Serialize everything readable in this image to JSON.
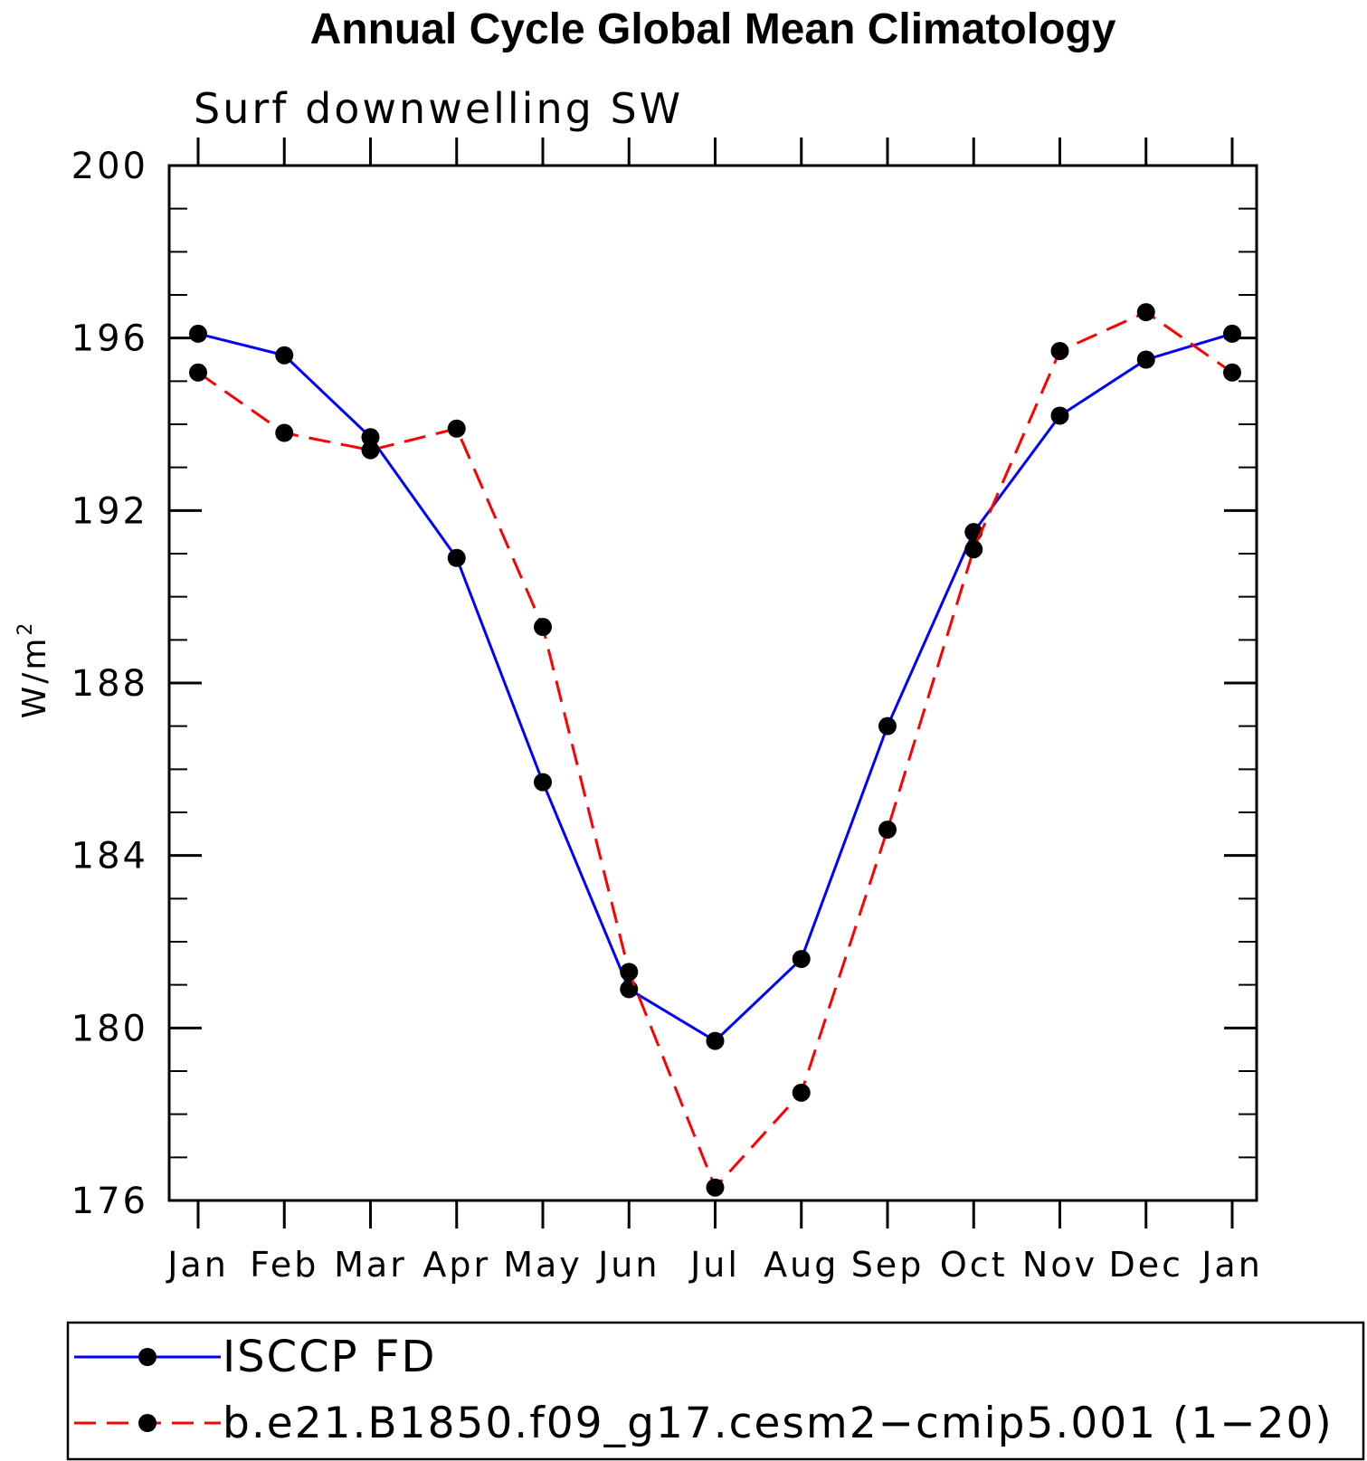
{
  "chart_data": {
    "type": "line",
    "title": "Annual Cycle Global Mean Climatology",
    "subtitle": "Surf downwelling SW",
    "xlabel": "",
    "ylabel_main": "W/m",
    "ylabel_superscript": "2",
    "categories": [
      "Jan",
      "Feb",
      "Mar",
      "Apr",
      "May",
      "Jun",
      "Jul",
      "Aug",
      "Sep",
      "Oct",
      "Nov",
      "Dec",
      "Jan"
    ],
    "ylim": [
      176,
      200
    ],
    "y_ticks": [
      200,
      196,
      192,
      188,
      184,
      180,
      176
    ],
    "y_tick_labels": [
      "200",
      "196",
      "192",
      "188",
      "184",
      "180",
      "176"
    ],
    "series": [
      {
        "name": "ISCCP FD",
        "color": "#0000ff",
        "dash": "solid",
        "values": [
          196.1,
          195.6,
          193.7,
          190.9,
          185.7,
          180.9,
          179.7,
          181.6,
          187.0,
          191.5,
          194.2,
          195.5,
          196.1
        ]
      },
      {
        "name": "b.e21.B1850.f09_g17.cesm2−cmip5.001 (1−20)",
        "color": "#ff0000",
        "dash": "dashed",
        "values": [
          195.2,
          193.8,
          193.4,
          193.9,
          189.3,
          181.3,
          176.3,
          178.5,
          184.6,
          191.1,
          195.7,
          196.6,
          195.2
        ]
      }
    ],
    "legend_position": "bottom",
    "grid": false,
    "marker": "filled-circle"
  }
}
